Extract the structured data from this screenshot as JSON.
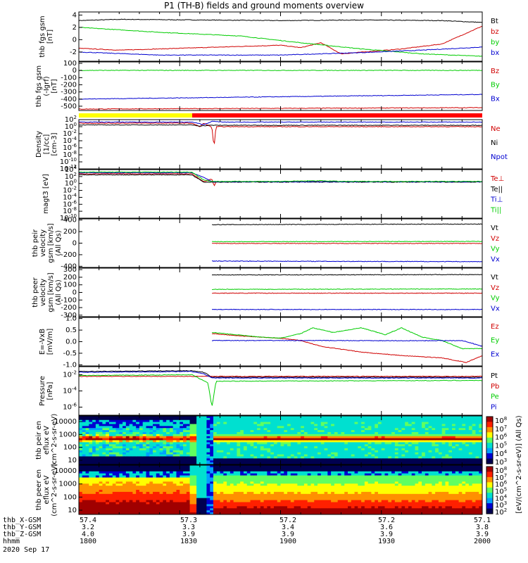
{
  "title": "P1 (TH-B) fields and ground moments overview",
  "footer": {
    "rows": [
      {
        "label": "thb_X-GSM",
        "values": [
          "57.4",
          "57.3",
          "57.2",
          "57.2",
          "57.1"
        ]
      },
      {
        "label": "thb_Y-GSM",
        "values": [
          "3.2",
          "3.3",
          "3.4",
          "3.6",
          "3.8"
        ]
      },
      {
        "label": "thb_Z-GSM",
        "values": [
          "4.0",
          "3.9",
          "3.9",
          "3.9",
          "3.9"
        ]
      },
      {
        "label": "hhmm",
        "values": [
          "1800",
          "1830",
          "1900",
          "1930",
          "2000"
        ]
      }
    ],
    "date": "2020 Sep 17"
  },
  "colorbar": {
    "label": "[eV/(cm^2-s-sr-eV)] (All Qs)",
    "ticks_top": [
      "10^8",
      "10^7",
      "10^6",
      "10^5",
      "10^4",
      "10^3"
    ],
    "ticks_bottom": [
      "10^8",
      "10^7",
      "10^6",
      "10^5",
      "10^4",
      "10^3",
      "10^2"
    ]
  },
  "chart_data": [
    {
      "type": "line",
      "ylabel": "thb fgs gsm [nT]",
      "ylim": [
        -3.5,
        4.5
      ],
      "yticks": [
        "4",
        "2",
        "0",
        "-2"
      ],
      "series": [
        {
          "name": "Bt",
          "color": "#000000",
          "keypoints": [
            [
              0,
              3.1
            ],
            [
              0.1,
              3.3
            ],
            [
              0.3,
              3.2
            ],
            [
              0.5,
              3.1
            ],
            [
              0.7,
              3.2
            ],
            [
              0.9,
              3.1
            ],
            [
              1.0,
              2.8
            ]
          ]
        },
        {
          "name": "bz",
          "color": "#d00000",
          "keypoints": [
            [
              0,
              -1.4
            ],
            [
              0.1,
              -1.7
            ],
            [
              0.3,
              -1.3
            ],
            [
              0.5,
              -0.9
            ],
            [
              0.55,
              -1.3
            ],
            [
              0.6,
              -0.5
            ],
            [
              0.65,
              -2.3
            ],
            [
              0.8,
              -1.5
            ],
            [
              0.9,
              -0.7
            ],
            [
              1.0,
              2.2
            ]
          ]
        },
        {
          "name": "by",
          "color": "#00cc00",
          "keypoints": [
            [
              0,
              2.0
            ],
            [
              0.2,
              1.2
            ],
            [
              0.4,
              0.6
            ],
            [
              0.55,
              -0.5
            ],
            [
              0.7,
              -1.5
            ],
            [
              0.85,
              -2.3
            ],
            [
              1.0,
              -2.7
            ]
          ]
        },
        {
          "name": "bx",
          "color": "#0000d0",
          "keypoints": [
            [
              0,
              -2.0
            ],
            [
              0.2,
              -2.5
            ],
            [
              0.5,
              -2.5
            ],
            [
              0.7,
              -2.1
            ],
            [
              0.85,
              -1.7
            ],
            [
              1.0,
              -1.2
            ]
          ]
        }
      ]
    },
    {
      "type": "line",
      "ylabel": "thb fgs gsm (-Igrf) [nT]",
      "ylim": [
        -560,
        120
      ],
      "yticks": [
        "100",
        "0",
        "-100",
        "-200",
        "-300",
        "-400",
        "-500"
      ],
      "series": [
        {
          "name": "Bz",
          "color": "#d00000",
          "keypoints": [
            [
              0,
              -540
            ],
            [
              1,
              -520
            ]
          ]
        },
        {
          "name": "By",
          "color": "#00cc00",
          "keypoints": [
            [
              0,
              2
            ],
            [
              1,
              2
            ]
          ]
        },
        {
          "name": "Bx",
          "color": "#0000d0",
          "keypoints": [
            [
              0,
              -400
            ],
            [
              1,
              -335
            ]
          ]
        }
      ]
    },
    {
      "type": "line",
      "ylabel": "Density [1/cc] [cm-3]",
      "scale": "log",
      "ylim": [
        -12,
        2
      ],
      "yticks": [
        "10^2",
        "10^0",
        "10^-2",
        "10^-4",
        "10^-6",
        "10^-8",
        "10^-10",
        "10^-12"
      ],
      "series": [
        {
          "name": "Ne",
          "color": "#d00000",
          "keypoints": [
            [
              0,
              1.0
            ],
            [
              0.28,
              1.0
            ],
            [
              0.3,
              0.0
            ],
            [
              0.31,
              1.0
            ],
            [
              0.33,
              -0.2
            ],
            [
              0.335,
              -6
            ],
            [
              0.34,
              0.0
            ],
            [
              1.0,
              0.0
            ]
          ]
        },
        {
          "name": "Ni",
          "color": "#000000",
          "keypoints": [
            [
              0,
              0.5
            ],
            [
              0.28,
              0.5
            ],
            [
              0.3,
              0.2
            ],
            [
              0.33,
              0.4
            ],
            [
              1.0,
              0.4
            ]
          ]
        },
        {
          "name": "Npot",
          "color": "#0000d0",
          "keypoints": [
            [
              0,
              1.3
            ],
            [
              0.28,
              1.3
            ],
            [
              0.31,
              0.6
            ],
            [
              0.33,
              1.5
            ],
            [
              0.36,
              1.3
            ],
            [
              1.0,
              1.3
            ]
          ]
        }
      ]
    },
    {
      "type": "line",
      "ylabel": "magt3 [eV]",
      "scale": "log",
      "ylim": [
        -10,
        4
      ],
      "yticks": [
        "10^4",
        "10^2",
        "10^0",
        "10^-2",
        "10^-4",
        "10^-6",
        "10^-8",
        "10^-10"
      ],
      "series": [
        {
          "name": "Te⊥",
          "color": "#d00000",
          "keypoints": [
            [
              0,
              2.8
            ],
            [
              0.28,
              2.8
            ],
            [
              0.31,
              0.5
            ],
            [
              0.33,
              1.3
            ],
            [
              0.335,
              -0.8
            ],
            [
              0.34,
              0.5
            ],
            [
              1.0,
              0.5
            ]
          ]
        },
        {
          "name": "Te||",
          "color": "#000000",
          "keypoints": [
            [
              0,
              2.5
            ],
            [
              0.28,
              2.5
            ],
            [
              0.31,
              0.4
            ],
            [
              1.0,
              0.4
            ]
          ]
        },
        {
          "name": "Ti⊥",
          "color": "#0000d0",
          "keypoints": [
            [
              0,
              3.1
            ],
            [
              0.28,
              3.1
            ],
            [
              0.32,
              1.2
            ],
            [
              0.33,
              0.5
            ],
            [
              1.0,
              0.5
            ]
          ]
        },
        {
          "name": "Ti||",
          "color": "#00cc00",
          "keypoints": [
            [
              0,
              3.3
            ],
            [
              0.28,
              3.3
            ],
            [
              0.31,
              1.0
            ],
            [
              0.33,
              0.6
            ],
            [
              0.5,
              0.6
            ],
            [
              0.6,
              0.8
            ],
            [
              0.65,
              0.6
            ],
            [
              1.0,
              0.6
            ]
          ]
        }
      ]
    },
    {
      "type": "line",
      "ylabel": "thb peir velocity gsm [km/s] (All Qs)",
      "ylim": [
        -420,
        420
      ],
      "yticks": [
        "400",
        "200",
        "0",
        "-200",
        "-400"
      ],
      "series": [
        {
          "name": "Vt",
          "color": "#000000",
          "keypoints": [
            [
              0.33,
              320
            ],
            [
              1.0,
              330
            ]
          ]
        },
        {
          "name": "Vz",
          "color": "#d00000",
          "keypoints": [
            [
              0.33,
              -5
            ],
            [
              1.0,
              -5
            ]
          ]
        },
        {
          "name": "Vy",
          "color": "#00cc00",
          "keypoints": [
            [
              0.33,
              25
            ],
            [
              1.0,
              30
            ]
          ]
        },
        {
          "name": "Vx",
          "color": "#0000d0",
          "keypoints": [
            [
              0.33,
              -310
            ],
            [
              1.0,
              -320
            ]
          ]
        }
      ]
    },
    {
      "type": "line",
      "ylabel": "thb peer velocity gsm [km/s] (All Qs)",
      "ylim": [
        -320,
        320
      ],
      "yticks": [
        "300",
        "200",
        "100",
        "0",
        "-100",
        "-200",
        "-300"
      ],
      "series": [
        {
          "name": "Vt",
          "color": "#000000",
          "keypoints": [
            [
              0.33,
              230
            ],
            [
              1.0,
              235
            ]
          ]
        },
        {
          "name": "Vz",
          "color": "#d00000",
          "keypoints": [
            [
              0.33,
              -10
            ],
            [
              1.0,
              -10
            ]
          ]
        },
        {
          "name": "Vy",
          "color": "#00cc00",
          "keypoints": [
            [
              0.33,
              40
            ],
            [
              1.0,
              45
            ]
          ]
        },
        {
          "name": "Vx",
          "color": "#0000d0",
          "keypoints": [
            [
              0.33,
              -225
            ],
            [
              1.0,
              -225
            ]
          ]
        }
      ]
    },
    {
      "type": "line",
      "ylabel": "E=-VxB [mV/m]",
      "ylim": [
        -1.05,
        1.05
      ],
      "yticks": [
        "1.0",
        "0.5",
        "0.0",
        "-0.5",
        "-1.0"
      ],
      "series": [
        {
          "name": "Ez",
          "color": "#d00000",
          "keypoints": [
            [
              0.33,
              0.35
            ],
            [
              0.4,
              0.25
            ],
            [
              0.5,
              0.15
            ],
            [
              0.55,
              0.05
            ],
            [
              0.6,
              -0.2
            ],
            [
              0.7,
              -0.45
            ],
            [
              0.8,
              -0.6
            ],
            [
              0.9,
              -0.7
            ],
            [
              0.96,
              -0.9
            ],
            [
              1.0,
              -0.6
            ]
          ]
        },
        {
          "name": "Ey",
          "color": "#00cc00",
          "keypoints": [
            [
              0.33,
              0.4
            ],
            [
              0.45,
              0.2
            ],
            [
              0.5,
              0.15
            ],
            [
              0.55,
              0.35
            ],
            [
              0.58,
              0.6
            ],
            [
              0.63,
              0.4
            ],
            [
              0.7,
              0.6
            ],
            [
              0.76,
              0.3
            ],
            [
              0.8,
              0.6
            ],
            [
              0.85,
              0.2
            ],
            [
              0.9,
              0.05
            ],
            [
              0.95,
              -0.3
            ],
            [
              1.0,
              -0.3
            ]
          ]
        },
        {
          "name": "Ex",
          "color": "#0000d0",
          "keypoints": [
            [
              0.33,
              0.05
            ],
            [
              0.6,
              0.05
            ],
            [
              0.8,
              0.04
            ],
            [
              0.95,
              0.05
            ],
            [
              1.0,
              -0.2
            ]
          ]
        }
      ]
    },
    {
      "type": "line",
      "ylabel": "Pressure [nPa]",
      "scale": "log",
      "ylim": [
        -7,
        -1
      ],
      "yticks": [
        "10^-2",
        "10^-4",
        "10^-6"
      ],
      "series": [
        {
          "name": "Pt",
          "color": "#000000",
          "keypoints": [
            [
              0,
              -1.6
            ],
            [
              0.28,
              -1.5
            ],
            [
              0.31,
              -1.7
            ],
            [
              0.33,
              -2.3
            ],
            [
              1.0,
              -2.3
            ]
          ]
        },
        {
          "name": "Pb",
          "color": "#d00000",
          "keypoints": [
            [
              0,
              -2.2
            ],
            [
              1.0,
              -2.2
            ]
          ]
        },
        {
          "name": "Pe",
          "color": "#00cc00",
          "keypoints": [
            [
              0,
              -2.1
            ],
            [
              0.28,
              -2.0
            ],
            [
              0.32,
              -3.0
            ],
            [
              0.33,
              -6.0
            ],
            [
              0.34,
              -2.8
            ],
            [
              1.0,
              -2.7
            ]
          ]
        },
        {
          "name": "Pi",
          "color": "#0000d0",
          "keypoints": [
            [
              0,
              -1.7
            ],
            [
              0.28,
              -1.6
            ],
            [
              0.31,
              -1.9
            ],
            [
              0.33,
              -2.4
            ],
            [
              1.0,
              -2.4
            ]
          ]
        }
      ]
    },
    {
      "type": "heatmap",
      "ylabel": "thb peir en eflux eV (cm^2-s-sr-eV)",
      "yticks": [
        "10000",
        "1000",
        "100",
        "10"
      ],
      "note": "ion energy spectrogram, peak near 1000 eV"
    },
    {
      "type": "heatmap",
      "ylabel": "thb peer en eflux eV (cm^2-s-sr-eV)",
      "yticks": [
        "10000",
        "1000",
        "100",
        "10"
      ],
      "note": "electron energy spectrogram, high flux below 100 eV"
    }
  ],
  "legends": [
    [
      [
        "Bt",
        "#000000"
      ],
      [
        "bz",
        "#d00000"
      ],
      [
        "by",
        "#00cc00"
      ],
      [
        "bx",
        "#0000d0"
      ]
    ],
    [
      [
        "Bz",
        "#d00000"
      ],
      [
        "By",
        "#00cc00"
      ],
      [
        "Bx",
        "#0000d0"
      ]
    ],
    [
      [
        "Ne",
        "#d00000"
      ],
      [
        "Ni",
        "#000000"
      ],
      [
        "Npot",
        "#0000d0"
      ]
    ],
    [
      [
        "Te⊥",
        "#d00000"
      ],
      [
        "Te||",
        "#000000"
      ],
      [
        "Ti⊥",
        "#0000d0"
      ],
      [
        "Ti||",
        "#00cc00"
      ]
    ],
    [
      [
        "Vt",
        "#000000"
      ],
      [
        "Vz",
        "#d00000"
      ],
      [
        "Vy",
        "#00cc00"
      ],
      [
        "Vx",
        "#0000d0"
      ]
    ],
    [
      [
        "Vt",
        "#000000"
      ],
      [
        "Vz",
        "#d00000"
      ],
      [
        "Vy",
        "#00cc00"
      ],
      [
        "Vx",
        "#0000d0"
      ]
    ],
    [
      [
        "Ez",
        "#d00000"
      ],
      [
        "Ey",
        "#00cc00"
      ],
      [
        "Ex",
        "#0000d0"
      ]
    ],
    [
      [
        "Pt",
        "#000000"
      ],
      [
        "Pb",
        "#d00000"
      ],
      [
        "Pe",
        "#00cc00"
      ],
      [
        "Pi",
        "#0000d0"
      ]
    ],
    [],
    []
  ]
}
